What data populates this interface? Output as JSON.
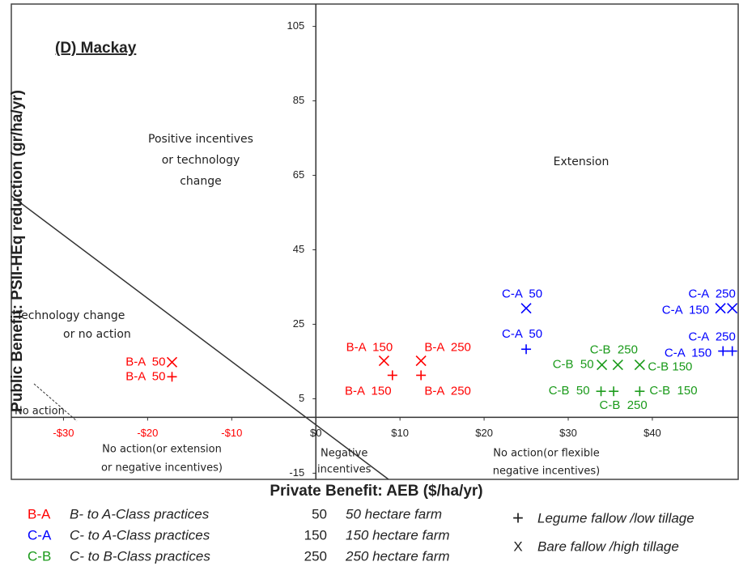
{
  "chart_data": {
    "type": "scatter",
    "title": "(D) Mackay",
    "x_label": "Private Benefit: AEB ($/ha/yr)",
    "y_label": "Public Benefit: PSII-HEq reduction (gr/ha/yr)",
    "xlim": [
      -36.2,
      50.3
    ],
    "ylim": [
      -16,
      111
    ],
    "xticks": [
      {
        "value": -30,
        "label": "-$30"
      },
      {
        "value": -20,
        "label": "-$20"
      },
      {
        "value": -10,
        "label": "-$10"
      },
      {
        "value": 0,
        "label": "$0"
      },
      {
        "value": 10,
        "label": "$10"
      },
      {
        "value": 20,
        "label": "$20"
      },
      {
        "value": 30,
        "label": "$30"
      },
      {
        "value": 40,
        "label": "$40"
      }
    ],
    "yticks": [
      -15,
      5,
      25,
      45,
      65,
      85,
      105
    ],
    "negative_tick_color": "#ff0000",
    "annotations": {
      "positive": [
        "Positive incentives",
        "or technology",
        "change"
      ],
      "extension": "Extension",
      "technology": [
        "Technology change",
        "or no action"
      ],
      "no_action": "No action",
      "no_action_left": [
        "No action(or extension",
        "or negative incentives)"
      ],
      "negative": [
        "Negative",
        "incentives"
      ],
      "no_action_right": [
        "No action(or flexible",
        "negative incentives)"
      ]
    },
    "series": [
      {
        "name": "B-A",
        "description": "B- to A-Class practices",
        "color": "#ff0000",
        "x": [
          -17.1,
          -17.1,
          8.1,
          9.1,
          12.5,
          12.5
        ],
        "values": [
          14.8,
          10.9,
          15.2,
          11.3,
          15.2,
          11.3
        ],
        "markers": [
          "x",
          "+",
          "x",
          "+",
          "x",
          "+"
        ],
        "labels": [
          "B-A  50",
          "B-A  50",
          "B-A  150",
          "B-A  150",
          "B-A  250",
          "B-A  250"
        ]
      },
      {
        "name": "C-A",
        "description": "C- to A-Class practices",
        "color": "#0000ff",
        "x": [
          25,
          25,
          48.1,
          49.5,
          48.4,
          49.5
        ],
        "values": [
          29.3,
          18.3,
          29.3,
          29.3,
          17.8,
          17.8
        ],
        "markers": [
          "x",
          "+",
          "x",
          "x",
          "+",
          "+"
        ],
        "labels": [
          "C-A  50",
          "C-A  50",
          "C-A  150",
          "C-A  250",
          "C-A  150",
          "C-A  250"
        ]
      },
      {
        "name": "C-B",
        "description": "C- to B-Class practices",
        "color": "#1a9a1a",
        "x": [
          34.0,
          35.9,
          38.5,
          33.9,
          35.4,
          38.5
        ],
        "values": [
          14.1,
          14.1,
          14.1,
          7.0,
          7.0,
          7.0
        ],
        "markers": [
          "x",
          "x",
          "x",
          "+",
          "+",
          "+"
        ],
        "labels": [
          "C-B  50",
          "C-B  250",
          "C-B 150",
          "C-B  50",
          "C-B  250",
          "C-B  150"
        ]
      }
    ],
    "farm_legend": [
      {
        "size": "50",
        "label": "50 hectare farm"
      },
      {
        "size": "150",
        "label": "150 hectare farm"
      },
      {
        "size": "250",
        "label": "250 hectare farm"
      }
    ],
    "marker_legend": [
      {
        "symbol": "+",
        "label": "Legume fallow /low tillage"
      },
      {
        "symbol": "X",
        "label": "Bare fallow /high tillage"
      }
    ]
  }
}
